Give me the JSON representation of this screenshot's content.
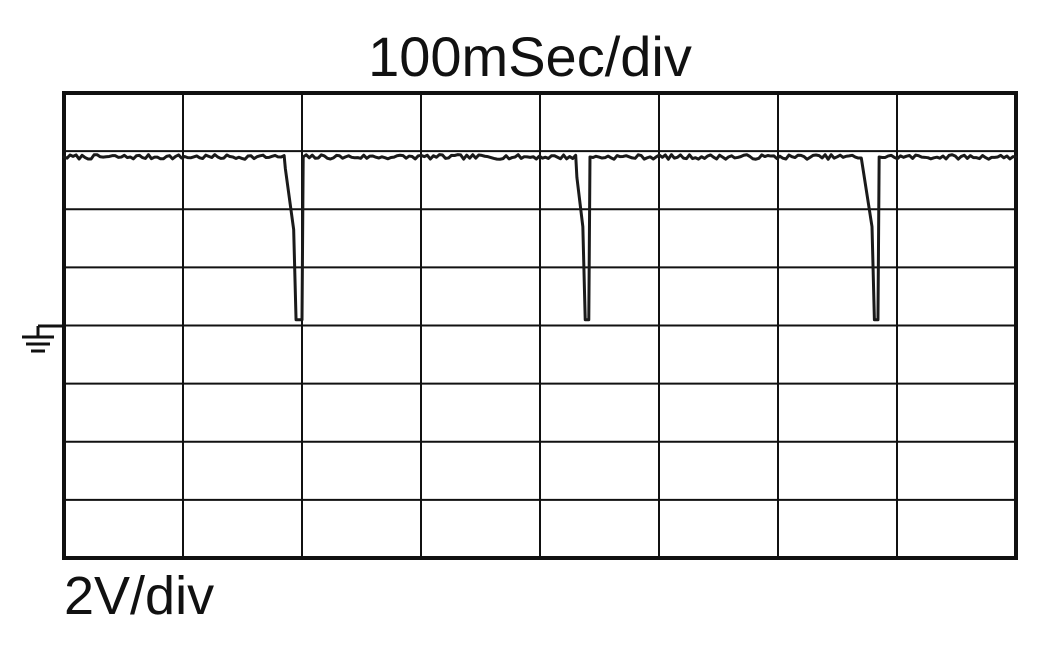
{
  "chart_data": {
    "type": "line",
    "title": "100mSec/div",
    "xlabel": "100mSec/div",
    "ylabel": "2V/div",
    "x_divisions": 8,
    "y_divisions": 8,
    "x_unit": "mSec",
    "y_unit": "V",
    "x_per_div": 100,
    "y_per_div": 2,
    "xlim": [
      0,
      800
    ],
    "ylim": [
      -8,
      8
    ],
    "ground_level": 0,
    "grid": true,
    "ground_marker": "ground-symbol",
    "series": [
      {
        "x": [
          0,
          185,
          186,
          193,
          195,
          200,
          201,
          430,
          431,
          436,
          438,
          441,
          442,
          670,
          671,
          679,
          681,
          684,
          685,
          800
        ],
        "y": [
          5.8,
          5.8,
          5.4,
          3.3,
          0.2,
          0.2,
          5.8,
          5.8,
          5.1,
          3.4,
          0.2,
          0.2,
          5.8,
          5.8,
          5.5,
          3.4,
          0.2,
          0.2,
          5.8,
          5.8
        ],
        "noise_amplitude": 0.08
      }
    ],
    "colors": {
      "trace": "#1a1a1a",
      "grid": "#111111",
      "background": "#ffffff"
    }
  }
}
